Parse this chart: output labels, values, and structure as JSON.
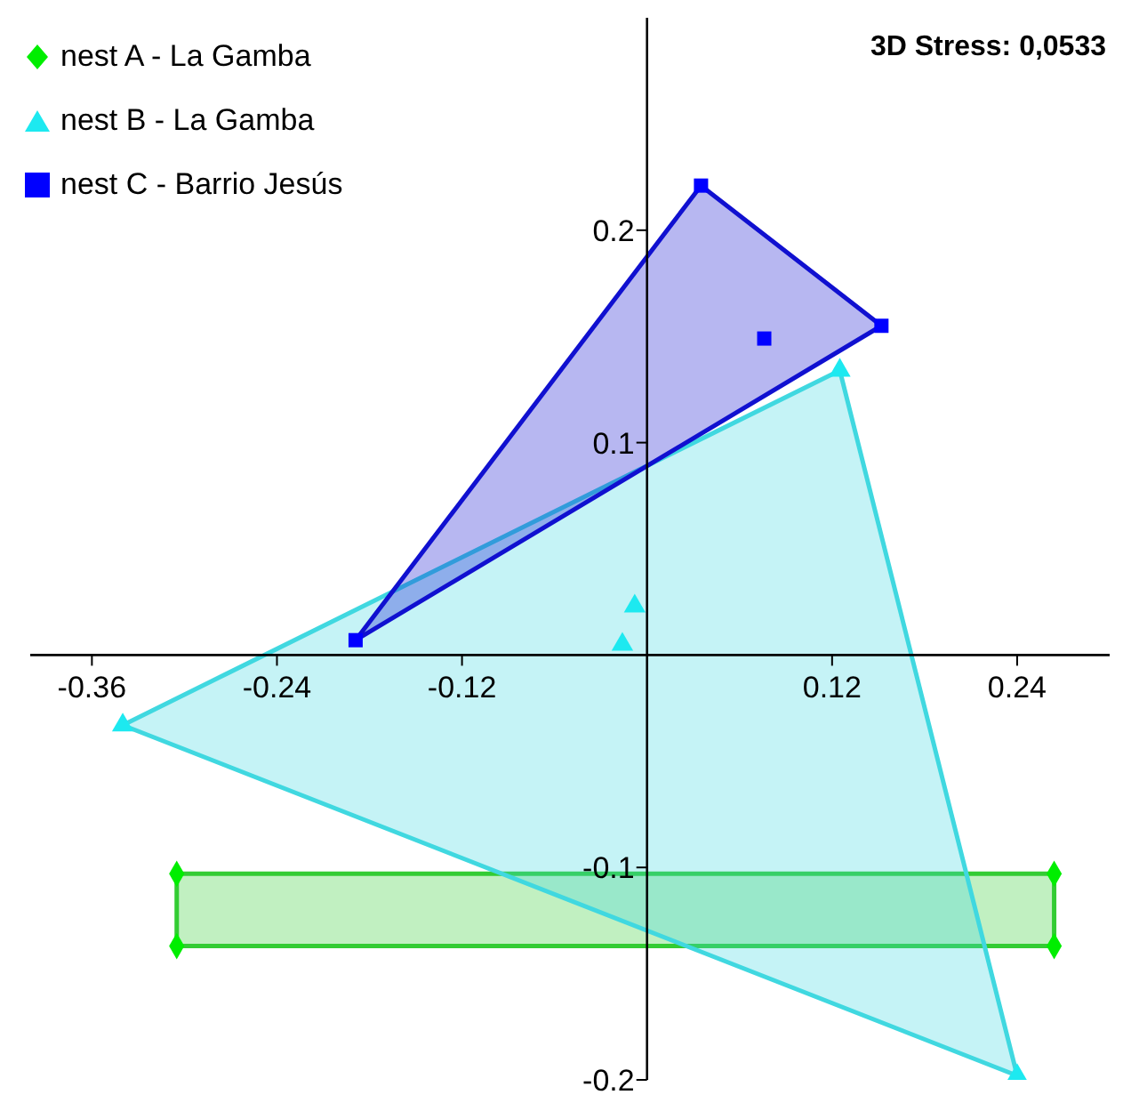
{
  "chart_data": {
    "type": "scatter",
    "annotations": [
      "3D Stress: 0,0533"
    ],
    "xlim": [
      -0.4,
      0.3
    ],
    "ylim": [
      -0.2,
      0.3
    ],
    "xticks": [
      -0.36,
      -0.24,
      -0.12,
      0.12,
      0.24
    ],
    "yticks": [
      -0.2,
      -0.1,
      0.1,
      0.2
    ],
    "grid": false,
    "legend": "top left",
    "series": [
      {
        "type": "area",
        "color": "#33cc33",
        "x": [
          -0.305,
          0.264,
          0.264,
          -0.305
        ],
        "values": [
          -0.103,
          -0.103,
          -0.137,
          -0.137
        ]
      },
      {
        "type": "area",
        "color": "#40d8e0",
        "x": [
          -0.34,
          0.125,
          0.24
        ],
        "values": [
          -0.033,
          0.134,
          -0.198
        ]
      },
      {
        "type": "area",
        "color": "#1010d0",
        "x": [
          -0.189,
          0.035,
          0.152
        ],
        "values": [
          0.007,
          0.221,
          0.155
        ]
      },
      {
        "name": "nest A - La Gamba",
        "color": "#00ee00",
        "marker": "diamond",
        "x": [
          -0.305,
          0.264,
          -0.305,
          0.264
        ],
        "values": [
          -0.103,
          -0.103,
          -0.137,
          -0.137
        ]
      },
      {
        "name": "nest B - La Gamba",
        "color": "#1de9f0",
        "marker": "triangle",
        "x": [
          -0.34,
          0.24,
          0.125,
          -0.008,
          -0.016
        ],
        "values": [
          -0.033,
          -0.198,
          0.134,
          0.023,
          0.005
        ]
      },
      {
        "name": "nest C - Barrio Jesús",
        "color": "#0000ff",
        "marker": "square",
        "x": [
          -0.189,
          0.035,
          0.076,
          0.152
        ],
        "values": [
          0.007,
          0.221,
          0.149,
          0.155
        ]
      }
    ]
  }
}
